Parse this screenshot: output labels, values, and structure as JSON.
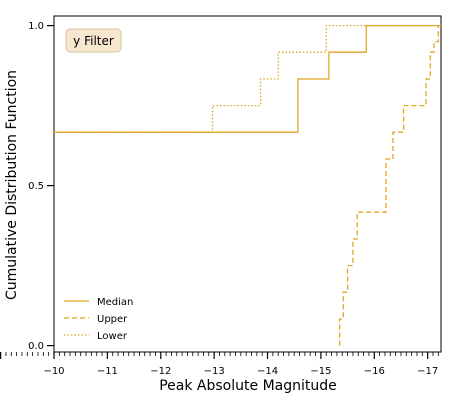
{
  "chart_data": {
    "type": "line",
    "subtype": "step-ecdf",
    "annotation": "y Filter",
    "xlabel": "Peak Absolute Magnitude",
    "ylabel": "Cumulative Distribution Function",
    "xlim": [
      -10,
      -17.25
    ],
    "ylim": [
      -0.02,
      1.03
    ],
    "x_inverted": true,
    "grid": false,
    "legend_position": "lower-left",
    "x_ticks": [
      -10,
      -11,
      -12,
      -13,
      -14,
      -15,
      -16,
      -17
    ],
    "x_tick_labels": [
      "−10",
      "−11",
      "−12",
      "−13",
      "−14",
      "−15",
      "−16",
      "−17"
    ],
    "y_ticks": [
      0.0,
      0.5,
      1.0
    ],
    "y_tick_labels": [
      "0.0",
      "0.5",
      "1.0"
    ],
    "colors": {
      "series": "#e0a526",
      "badge_fill": "#f8e7cf",
      "badge_border": "#d9c3a2",
      "frame": "#000000"
    },
    "series": [
      {
        "name": "Median",
        "dash": "solid",
        "x": [
          -10,
          -14.57,
          -14.57,
          -15.15,
          -15.15,
          -15.85,
          -15.85,
          -17.25
        ],
        "y": [
          0.667,
          0.667,
          0.833,
          0.833,
          0.917,
          0.917,
          1.0,
          1.0
        ]
      },
      {
        "name": "Upper",
        "dash": "dashed",
        "x": [
          -15.35,
          -15.35,
          -15.42,
          -15.42,
          -15.5,
          -15.5,
          -15.6,
          -15.6,
          -15.68,
          -15.68,
          -16.22,
          -16.22,
          -16.35,
          -16.35,
          -16.55,
          -16.55,
          -16.97,
          -16.97,
          -17.05,
          -17.05,
          -17.12,
          -17.12,
          -17.2,
          -17.2
        ],
        "y": [
          0.0,
          0.083,
          0.083,
          0.167,
          0.167,
          0.25,
          0.25,
          0.333,
          0.333,
          0.417,
          0.417,
          0.583,
          0.583,
          0.667,
          0.667,
          0.75,
          0.75,
          0.833,
          0.833,
          0.917,
          0.917,
          0.95,
          0.95,
          1.0
        ]
      },
      {
        "name": "Lower",
        "dash": "dotted",
        "x": [
          -10,
          -12.97,
          -12.97,
          -13.87,
          -13.87,
          -14.2,
          -14.2,
          -15.1,
          -15.1,
          -17.25
        ],
        "y": [
          0.667,
          0.667,
          0.75,
          0.75,
          0.833,
          0.833,
          0.917,
          0.917,
          1.0,
          1.0
        ]
      }
    ]
  }
}
